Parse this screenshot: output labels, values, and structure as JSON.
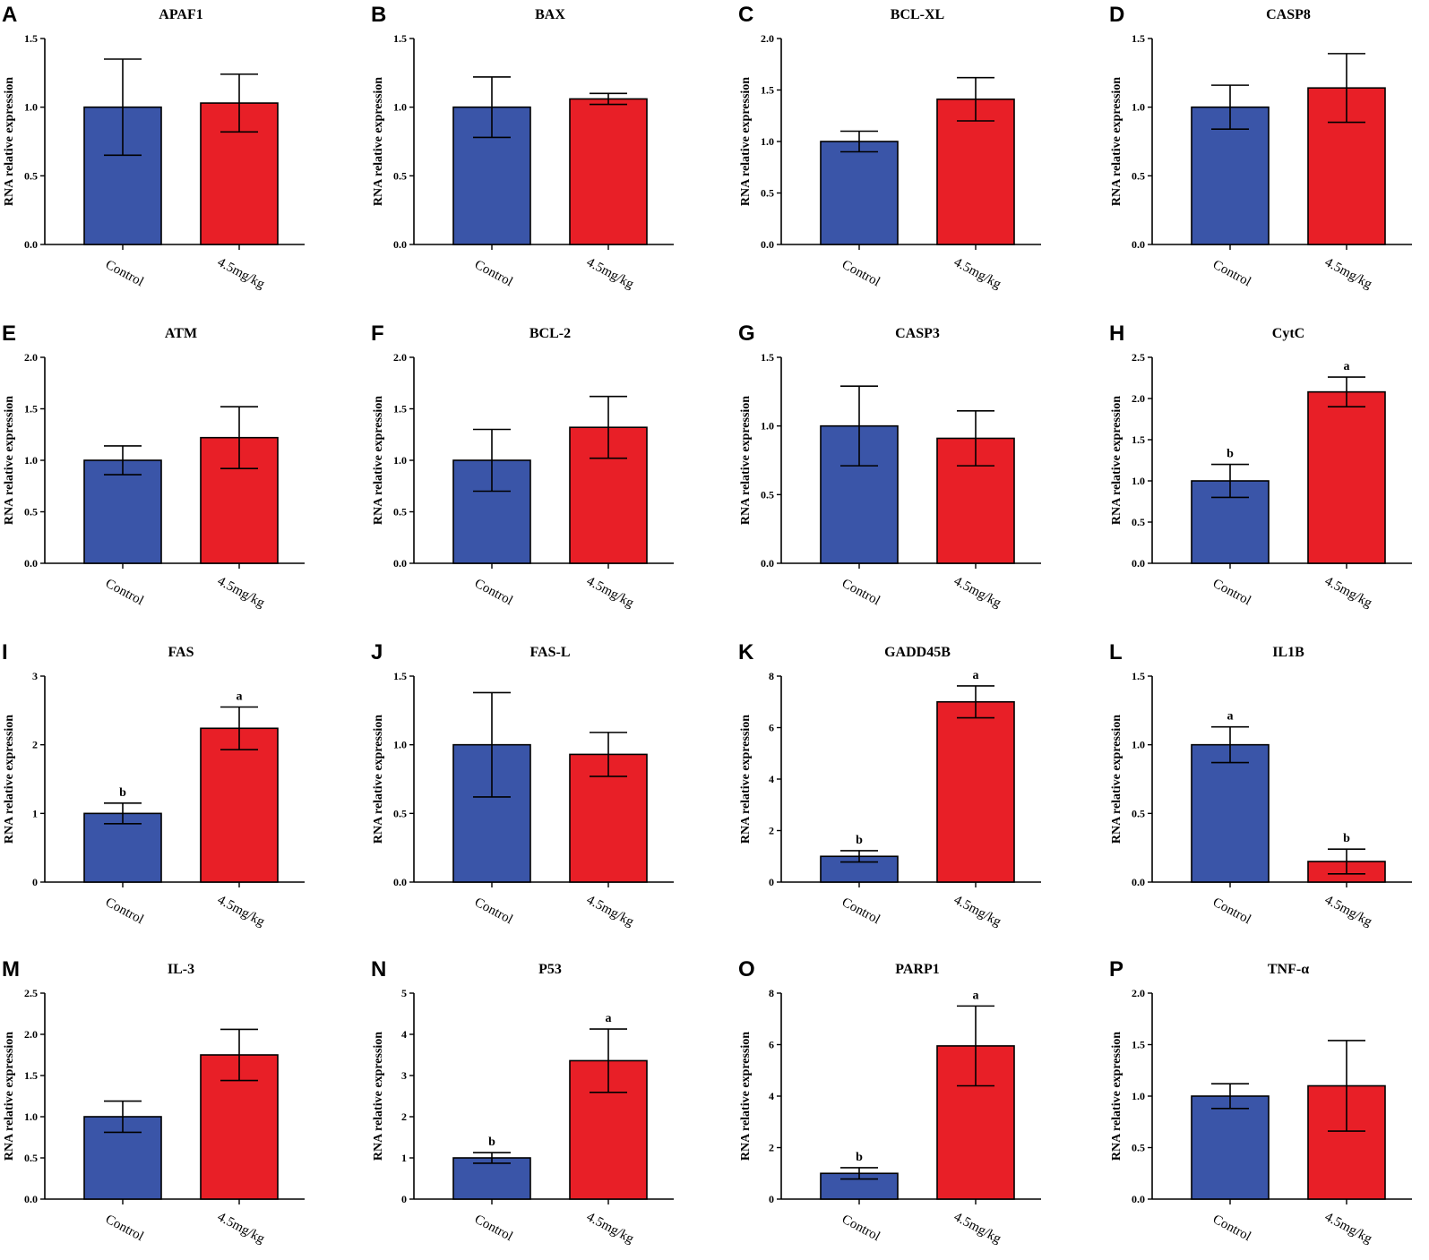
{
  "figure": {
    "ylabel": "RNA relative expression",
    "colors": {
      "control": "#3a55a8",
      "treated": "#e81f27"
    }
  },
  "chart_data": [
    {
      "type": "bar",
      "letter": "A",
      "title": "APAF1",
      "ylabel": "RNA relative expression",
      "categories": [
        "Control",
        "4.5mg/kg"
      ],
      "values": [
        1.0,
        1.03
      ],
      "errors": [
        0.35,
        0.21
      ],
      "sig": [
        "",
        ""
      ],
      "ylim": [
        0,
        1.5
      ],
      "ticks": [
        "0.0",
        "0.5",
        "1.0",
        "1.5"
      ]
    },
    {
      "type": "bar",
      "letter": "B",
      "title": "BAX",
      "ylabel": "RNA relative expression",
      "categories": [
        "Control",
        "4.5mg/kg"
      ],
      "values": [
        1.0,
        1.06
      ],
      "errors": [
        0.22,
        0.04
      ],
      "sig": [
        "",
        ""
      ],
      "ylim": [
        0,
        1.5
      ],
      "ticks": [
        "0.0",
        "0.5",
        "1.0",
        "1.5"
      ]
    },
    {
      "type": "bar",
      "letter": "C",
      "title": "BCL-XL",
      "ylabel": "RNA relative expression",
      "categories": [
        "Control",
        "4.5mg/kg"
      ],
      "values": [
        1.0,
        1.41
      ],
      "errors": [
        0.1,
        0.21
      ],
      "sig": [
        "",
        ""
      ],
      "ylim": [
        0,
        2.0
      ],
      "ticks": [
        "0.0",
        "0.5",
        "1.0",
        "1.5",
        "2.0"
      ]
    },
    {
      "type": "bar",
      "letter": "D",
      "title": "CASP8",
      "ylabel": "RNA relative expression",
      "categories": [
        "Control",
        "4.5mg/kg"
      ],
      "values": [
        1.0,
        1.14
      ],
      "errors": [
        0.16,
        0.25
      ],
      "sig": [
        "",
        ""
      ],
      "ylim": [
        0,
        1.5
      ],
      "ticks": [
        "0.0",
        "0.5",
        "1.0",
        "1.5"
      ]
    },
    {
      "type": "bar",
      "letter": "E",
      "title": "ATM",
      "ylabel": "RNA relative expression",
      "categories": [
        "Control",
        "4.5mg/kg"
      ],
      "values": [
        1.0,
        1.22
      ],
      "errors": [
        0.14,
        0.3
      ],
      "sig": [
        "",
        ""
      ],
      "ylim": [
        0,
        2.0
      ],
      "ticks": [
        "0.0",
        "0.5",
        "1.0",
        "1.5",
        "2.0"
      ]
    },
    {
      "type": "bar",
      "letter": "F",
      "title": "BCL-2",
      "ylabel": "RNA relative expression",
      "categories": [
        "Control",
        "4.5mg/kg"
      ],
      "values": [
        1.0,
        1.32
      ],
      "errors": [
        0.3,
        0.3
      ],
      "sig": [
        "",
        ""
      ],
      "ylim": [
        0,
        2.0
      ],
      "ticks": [
        "0.0",
        "0.5",
        "1.0",
        "1.5",
        "2.0"
      ]
    },
    {
      "type": "bar",
      "letter": "G",
      "title": "CASP3",
      "ylabel": "RNA relative expression",
      "categories": [
        "Control",
        "4.5mg/kg"
      ],
      "values": [
        1.0,
        0.91
      ],
      "errors": [
        0.29,
        0.2
      ],
      "sig": [
        "",
        ""
      ],
      "ylim": [
        0,
        1.5
      ],
      "ticks": [
        "0.0",
        "0.5",
        "1.0",
        "1.5"
      ]
    },
    {
      "type": "bar",
      "letter": "H",
      "title": "CytC",
      "ylabel": "RNA relative expression",
      "categories": [
        "Control",
        "4.5mg/kg"
      ],
      "values": [
        1.0,
        2.08
      ],
      "errors": [
        0.2,
        0.18
      ],
      "sig": [
        "b",
        "a"
      ],
      "ylim": [
        0,
        2.5
      ],
      "ticks": [
        "0.0",
        "0.5",
        "1.0",
        "1.5",
        "2.0",
        "2.5"
      ]
    },
    {
      "type": "bar",
      "letter": "I",
      "title": "FAS",
      "ylabel": "RNA relative expression",
      "categories": [
        "Control",
        "4.5mg/kg"
      ],
      "values": [
        1.0,
        2.24
      ],
      "errors": [
        0.15,
        0.31
      ],
      "sig": [
        "b",
        "a"
      ],
      "ylim": [
        0,
        3
      ],
      "ticks": [
        "0",
        "1",
        "2",
        "3"
      ]
    },
    {
      "type": "bar",
      "letter": "J",
      "title": "FAS-L",
      "ylabel": "RNA relative expression",
      "categories": [
        "Control",
        "4.5mg/kg"
      ],
      "values": [
        1.0,
        0.93
      ],
      "errors": [
        0.38,
        0.16
      ],
      "sig": [
        "",
        ""
      ],
      "ylim": [
        0,
        1.5
      ],
      "ticks": [
        "0.0",
        "0.5",
        "1.0",
        "1.5"
      ]
    },
    {
      "type": "bar",
      "letter": "K",
      "title": "GADD45B",
      "ylabel": "RNA relative expression",
      "categories": [
        "Control",
        "4.5mg/kg"
      ],
      "values": [
        1.0,
        7.0
      ],
      "errors": [
        0.22,
        0.62
      ],
      "sig": [
        "b",
        "a"
      ],
      "ylim": [
        0,
        8
      ],
      "ticks": [
        "0",
        "2",
        "4",
        "6",
        "8"
      ]
    },
    {
      "type": "bar",
      "letter": "L",
      "title": "IL1B",
      "ylabel": "RNA relative expression",
      "categories": [
        "Control",
        "4.5mg/kg"
      ],
      "values": [
        1.0,
        0.15
      ],
      "errors": [
        0.13,
        0.09
      ],
      "sig": [
        "a",
        "b"
      ],
      "ylim": [
        0,
        1.5
      ],
      "ticks": [
        "0.0",
        "0.5",
        "1.0",
        "1.5"
      ]
    },
    {
      "type": "bar",
      "letter": "M",
      "title": "IL-3",
      "ylabel": "RNA relative expression",
      "categories": [
        "Control",
        "4.5mg/kg"
      ],
      "values": [
        1.0,
        1.75
      ],
      "errors": [
        0.19,
        0.31
      ],
      "sig": [
        "",
        ""
      ],
      "ylim": [
        0,
        2.5
      ],
      "ticks": [
        "0.0",
        "0.5",
        "1.0",
        "1.5",
        "2.0",
        "2.5"
      ]
    },
    {
      "type": "bar",
      "letter": "N",
      "title": "P53",
      "ylabel": "RNA relative expression",
      "categories": [
        "Control",
        "4.5mg/kg"
      ],
      "values": [
        1.0,
        3.36
      ],
      "errors": [
        0.13,
        0.77
      ],
      "sig": [
        "b",
        "a"
      ],
      "ylim": [
        0,
        5
      ],
      "ticks": [
        "0",
        "1",
        "2",
        "3",
        "4",
        "5"
      ]
    },
    {
      "type": "bar",
      "letter": "O",
      "title": "PARP1",
      "ylabel": "RNA relative expression",
      "categories": [
        "Control",
        "4.5mg/kg"
      ],
      "values": [
        1.0,
        5.95
      ],
      "errors": [
        0.22,
        1.55
      ],
      "sig": [
        "b",
        "a"
      ],
      "ylim": [
        0,
        8
      ],
      "ticks": [
        "0",
        "2",
        "4",
        "6",
        "8"
      ]
    },
    {
      "type": "bar",
      "letter": "P",
      "title": "TNF-α",
      "ylabel": "RNA relative expression",
      "categories": [
        "Control",
        "4.5mg/kg"
      ],
      "values": [
        1.0,
        1.1
      ],
      "errors": [
        0.12,
        0.44
      ],
      "sig": [
        "",
        ""
      ],
      "ylim": [
        0,
        2.0
      ],
      "ticks": [
        "0.0",
        "0.5",
        "1.0",
        "1.5",
        "2.0"
      ]
    }
  ]
}
